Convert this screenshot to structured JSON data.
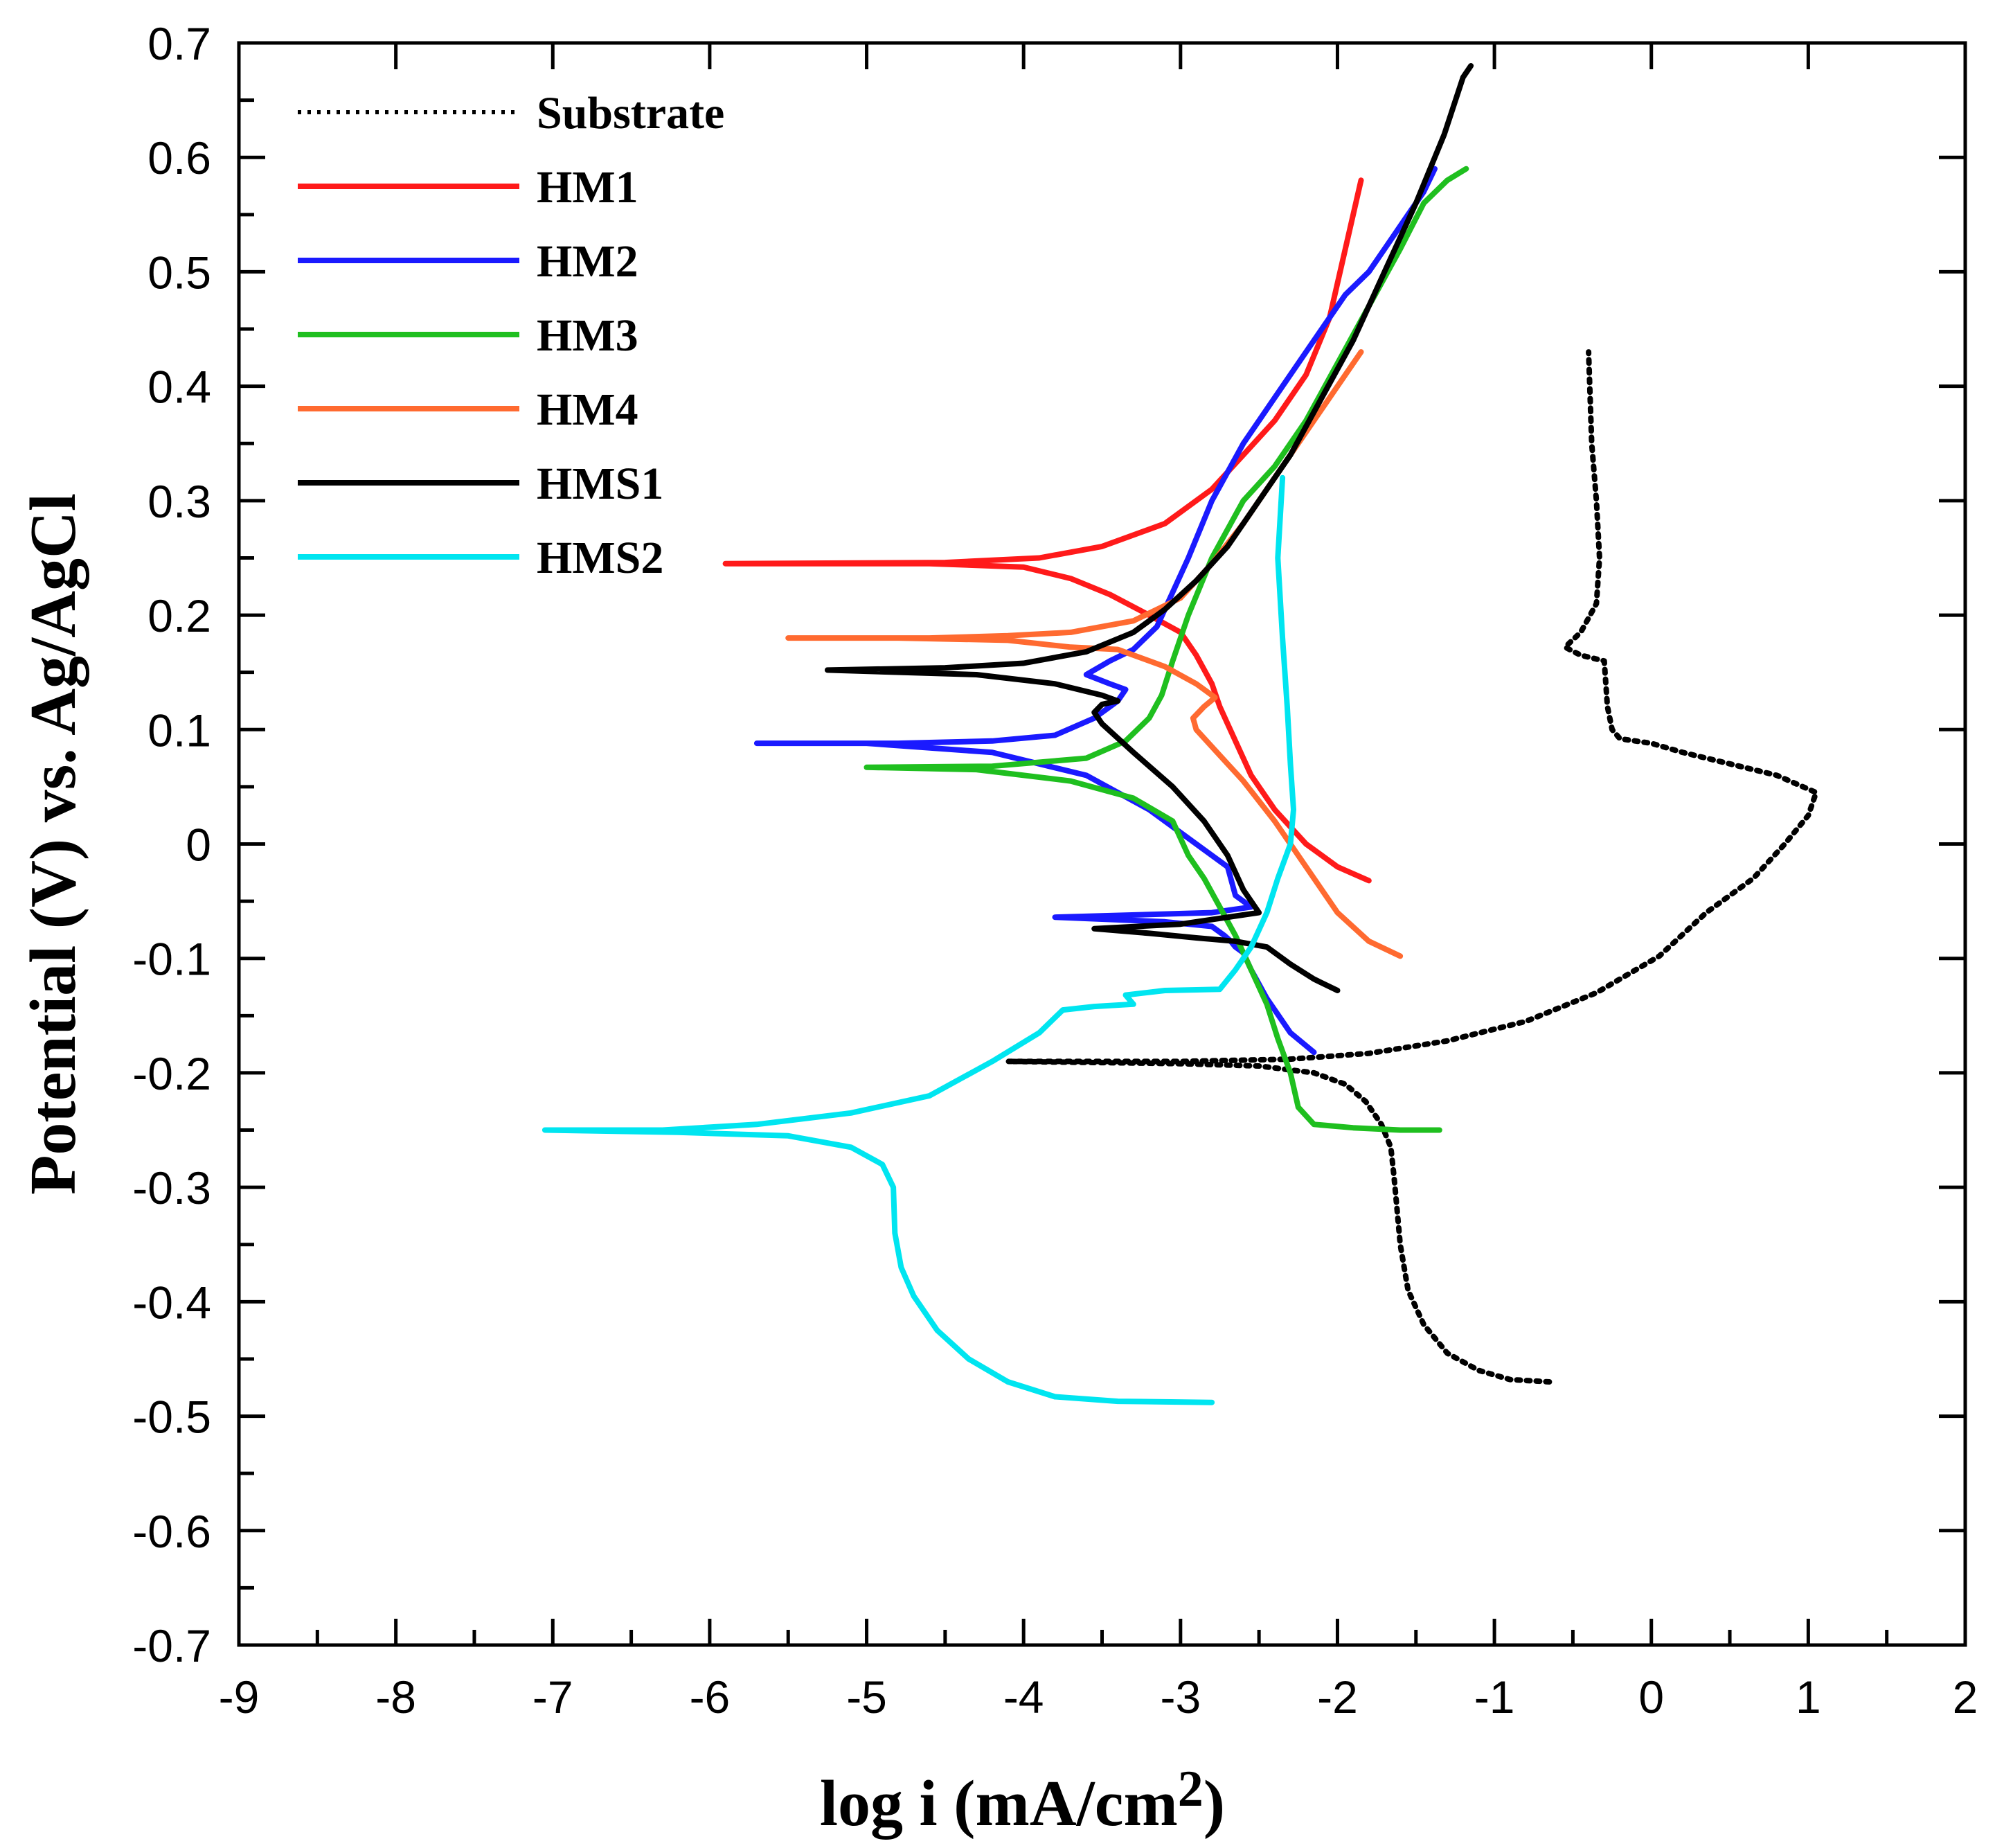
{
  "chart_data": {
    "type": "line",
    "title": "",
    "xlabel_main": "log i (mA/cm",
    "xlabel_sup": "2",
    "xlabel_tail": ")",
    "ylabel": "Potential (V) vs. Ag/AgCl",
    "xlim": [
      -9,
      2
    ],
    "ylim": [
      -0.7,
      0.7
    ],
    "xticks": [
      "-9",
      "-8",
      "-7",
      "-6",
      "-5",
      "-4",
      "-3",
      "-2",
      "-1",
      "0",
      "1",
      "2"
    ],
    "yticks": [
      "0.7",
      "0.6",
      "0.5",
      "0.4",
      "0.3",
      "0.2",
      "0.1",
      "0",
      "-0.1",
      "-0.2",
      "-0.3",
      "-0.4",
      "-0.5",
      "-0.6",
      "-0.7"
    ],
    "legend_position": "top-left",
    "series": [
      {
        "name": "Substrate",
        "color": "#000000",
        "style": "dotted",
        "points": [
          [
            -0.65,
            -0.47
          ],
          [
            -0.9,
            -0.468
          ],
          [
            -1.1,
            -0.46
          ],
          [
            -1.3,
            -0.445
          ],
          [
            -1.45,
            -0.42
          ],
          [
            -1.55,
            -0.39
          ],
          [
            -1.6,
            -0.35
          ],
          [
            -1.62,
            -0.32
          ],
          [
            -1.64,
            -0.29
          ],
          [
            -1.66,
            -0.265
          ],
          [
            -1.72,
            -0.245
          ],
          [
            -1.82,
            -0.225
          ],
          [
            -1.95,
            -0.21
          ],
          [
            -2.15,
            -0.2
          ],
          [
            -2.5,
            -0.194
          ],
          [
            -3.0,
            -0.192
          ],
          [
            -3.5,
            -0.191
          ],
          [
            -4.1,
            -0.19
          ],
          [
            -3.0,
            -0.19
          ],
          [
            -2.3,
            -0.188
          ],
          [
            -1.8,
            -0.183
          ],
          [
            -1.3,
            -0.172
          ],
          [
            -0.8,
            -0.155
          ],
          [
            -0.35,
            -0.13
          ],
          [
            0.05,
            -0.098
          ],
          [
            0.35,
            -0.06
          ],
          [
            0.65,
            -0.03
          ],
          [
            0.85,
            0.0
          ],
          [
            1.0,
            0.025
          ],
          [
            1.05,
            0.045
          ],
          [
            0.8,
            0.06
          ],
          [
            0.5,
            0.07
          ],
          [
            0.2,
            0.08
          ],
          [
            0.0,
            0.088
          ],
          [
            -0.2,
            0.092
          ],
          [
            -0.25,
            0.1
          ],
          [
            -0.28,
            0.12
          ],
          [
            -0.3,
            0.16
          ],
          [
            -0.45,
            0.165
          ],
          [
            -0.55,
            0.172
          ],
          [
            -0.45,
            0.185
          ],
          [
            -0.35,
            0.21
          ],
          [
            -0.33,
            0.25
          ],
          [
            -0.35,
            0.3
          ],
          [
            -0.38,
            0.35
          ],
          [
            -0.4,
            0.43
          ]
        ]
      },
      {
        "name": "HM1",
        "color": "#ff1a1a",
        "style": "solid",
        "points": [
          [
            -1.8,
            -0.032
          ],
          [
            -2.0,
            -0.02
          ],
          [
            -2.2,
            0.0
          ],
          [
            -2.4,
            0.03
          ],
          [
            -2.55,
            0.06
          ],
          [
            -2.65,
            0.09
          ],
          [
            -2.75,
            0.12
          ],
          [
            -2.8,
            0.14
          ],
          [
            -2.9,
            0.165
          ],
          [
            -3.0,
            0.185
          ],
          [
            -3.2,
            0.2
          ],
          [
            -3.45,
            0.218
          ],
          [
            -3.7,
            0.232
          ],
          [
            -4.0,
            0.242
          ],
          [
            -4.6,
            0.245
          ],
          [
            -5.9,
            0.245
          ],
          [
            -4.5,
            0.246
          ],
          [
            -3.9,
            0.25
          ],
          [
            -3.5,
            0.26
          ],
          [
            -3.1,
            0.28
          ],
          [
            -2.8,
            0.31
          ],
          [
            -2.6,
            0.34
          ],
          [
            -2.4,
            0.37
          ],
          [
            -2.2,
            0.41
          ],
          [
            -2.05,
            0.46
          ],
          [
            -1.95,
            0.52
          ],
          [
            -1.85,
            0.58
          ]
        ]
      },
      {
        "name": "HM2",
        "color": "#1a1aff",
        "style": "solid",
        "points": [
          [
            -2.15,
            -0.182
          ],
          [
            -2.3,
            -0.165
          ],
          [
            -2.45,
            -0.135
          ],
          [
            -2.55,
            -0.11
          ],
          [
            -2.6,
            -0.095
          ],
          [
            -2.65,
            -0.09
          ],
          [
            -2.68,
            -0.085
          ],
          [
            -2.72,
            -0.08
          ],
          [
            -2.8,
            -0.072
          ],
          [
            -3.1,
            -0.068
          ],
          [
            -3.8,
            -0.064
          ],
          [
            -2.8,
            -0.06
          ],
          [
            -2.55,
            -0.055
          ],
          [
            -2.65,
            -0.045
          ],
          [
            -2.7,
            -0.02
          ],
          [
            -2.9,
            0.0
          ],
          [
            -3.2,
            0.03
          ],
          [
            -3.6,
            0.06
          ],
          [
            -4.2,
            0.08
          ],
          [
            -5.0,
            0.088
          ],
          [
            -5.7,
            0.088
          ],
          [
            -4.8,
            0.088
          ],
          [
            -4.2,
            0.09
          ],
          [
            -3.8,
            0.095
          ],
          [
            -3.55,
            0.11
          ],
          [
            -3.4,
            0.125
          ],
          [
            -3.35,
            0.135
          ],
          [
            -3.45,
            0.14
          ],
          [
            -3.6,
            0.148
          ],
          [
            -3.45,
            0.16
          ],
          [
            -3.3,
            0.17
          ],
          [
            -3.15,
            0.19
          ],
          [
            -3.05,
            0.22
          ],
          [
            -2.95,
            0.25
          ],
          [
            -2.8,
            0.3
          ],
          [
            -2.6,
            0.35
          ],
          [
            -2.35,
            0.4
          ],
          [
            -2.1,
            0.45
          ],
          [
            -1.95,
            0.48
          ],
          [
            -1.8,
            0.5
          ],
          [
            -1.65,
            0.53
          ],
          [
            -1.55,
            0.55
          ],
          [
            -1.45,
            0.57
          ],
          [
            -1.38,
            0.59
          ]
        ]
      },
      {
        "name": "HM3",
        "color": "#1fbf1f",
        "style": "solid",
        "points": [
          [
            -1.35,
            -0.25
          ],
          [
            -1.6,
            -0.25
          ],
          [
            -1.9,
            -0.248
          ],
          [
            -2.15,
            -0.245
          ],
          [
            -2.25,
            -0.23
          ],
          [
            -2.3,
            -0.2
          ],
          [
            -2.38,
            -0.17
          ],
          [
            -2.45,
            -0.14
          ],
          [
            -2.55,
            -0.11
          ],
          [
            -2.65,
            -0.08
          ],
          [
            -2.75,
            -0.055
          ],
          [
            -2.85,
            -0.03
          ],
          [
            -2.95,
            -0.01
          ],
          [
            -3.05,
            0.02
          ],
          [
            -3.3,
            0.04
          ],
          [
            -3.7,
            0.055
          ],
          [
            -4.3,
            0.065
          ],
          [
            -5.0,
            0.067
          ],
          [
            -4.2,
            0.068
          ],
          [
            -3.6,
            0.075
          ],
          [
            -3.35,
            0.09
          ],
          [
            -3.2,
            0.11
          ],
          [
            -3.12,
            0.13
          ],
          [
            -3.05,
            0.16
          ],
          [
            -2.95,
            0.2
          ],
          [
            -2.8,
            0.25
          ],
          [
            -2.6,
            0.3
          ],
          [
            -2.4,
            0.33
          ],
          [
            -2.2,
            0.37
          ],
          [
            -2.0,
            0.42
          ],
          [
            -1.8,
            0.47
          ],
          [
            -1.6,
            0.52
          ],
          [
            -1.45,
            0.56
          ],
          [
            -1.3,
            0.58
          ],
          [
            -1.18,
            0.59
          ]
        ]
      },
      {
        "name": "HM4",
        "color": "#ff6a30",
        "style": "solid",
        "points": [
          [
            -1.6,
            -0.098
          ],
          [
            -1.8,
            -0.085
          ],
          [
            -2.0,
            -0.06
          ],
          [
            -2.2,
            -0.02
          ],
          [
            -2.4,
            0.02
          ],
          [
            -2.6,
            0.055
          ],
          [
            -2.8,
            0.085
          ],
          [
            -2.9,
            0.1
          ],
          [
            -2.92,
            0.11
          ],
          [
            -2.85,
            0.12
          ],
          [
            -2.78,
            0.128
          ],
          [
            -2.9,
            0.14
          ],
          [
            -3.1,
            0.155
          ],
          [
            -3.4,
            0.17
          ],
          [
            -3.7,
            0.172
          ],
          [
            -4.1,
            0.178
          ],
          [
            -4.8,
            0.18
          ],
          [
            -5.5,
            0.18
          ],
          [
            -4.6,
            0.18
          ],
          [
            -4.1,
            0.182
          ],
          [
            -3.7,
            0.185
          ],
          [
            -3.3,
            0.195
          ],
          [
            -3.0,
            0.215
          ],
          [
            -2.8,
            0.245
          ],
          [
            -2.6,
            0.28
          ],
          [
            -2.4,
            0.32
          ],
          [
            -2.2,
            0.36
          ],
          [
            -2.0,
            0.4
          ],
          [
            -1.85,
            0.43
          ]
        ]
      },
      {
        "name": "HMS1",
        "color": "#000000",
        "style": "solid",
        "points": [
          [
            -2.0,
            -0.128
          ],
          [
            -2.15,
            -0.118
          ],
          [
            -2.3,
            -0.105
          ],
          [
            -2.45,
            -0.09
          ],
          [
            -2.65,
            -0.085
          ],
          [
            -2.9,
            -0.082
          ],
          [
            -3.2,
            -0.078
          ],
          [
            -3.55,
            -0.074
          ],
          [
            -3.0,
            -0.07
          ],
          [
            -2.5,
            -0.06
          ],
          [
            -2.6,
            -0.04
          ],
          [
            -2.7,
            -0.01
          ],
          [
            -2.85,
            0.02
          ],
          [
            -3.05,
            0.05
          ],
          [
            -3.3,
            0.08
          ],
          [
            -3.5,
            0.105
          ],
          [
            -3.55,
            0.115
          ],
          [
            -3.5,
            0.122
          ],
          [
            -3.4,
            0.125
          ],
          [
            -3.5,
            0.13
          ],
          [
            -3.8,
            0.14
          ],
          [
            -4.3,
            0.148
          ],
          [
            -5.25,
            0.152
          ],
          [
            -4.5,
            0.154
          ],
          [
            -4.0,
            0.158
          ],
          [
            -3.6,
            0.168
          ],
          [
            -3.3,
            0.185
          ],
          [
            -3.1,
            0.205
          ],
          [
            -2.9,
            0.23
          ],
          [
            -2.7,
            0.26
          ],
          [
            -2.5,
            0.3
          ],
          [
            -2.3,
            0.34
          ],
          [
            -2.1,
            0.39
          ],
          [
            -1.9,
            0.44
          ],
          [
            -1.7,
            0.5
          ],
          [
            -1.5,
            0.56
          ],
          [
            -1.32,
            0.62
          ],
          [
            -1.2,
            0.67
          ],
          [
            -1.15,
            0.68
          ]
        ]
      },
      {
        "name": "HMS2",
        "color": "#00e5f0",
        "style": "solid",
        "points": [
          [
            -2.8,
            -0.488
          ],
          [
            -3.4,
            -0.487
          ],
          [
            -3.8,
            -0.483
          ],
          [
            -4.1,
            -0.47
          ],
          [
            -4.35,
            -0.45
          ],
          [
            -4.55,
            -0.425
          ],
          [
            -4.7,
            -0.395
          ],
          [
            -4.78,
            -0.37
          ],
          [
            -4.82,
            -0.34
          ],
          [
            -4.83,
            -0.3
          ],
          [
            -4.9,
            -0.28
          ],
          [
            -5.1,
            -0.265
          ],
          [
            -5.5,
            -0.255
          ],
          [
            -6.2,
            -0.252
          ],
          [
            -7.05,
            -0.25
          ],
          [
            -6.3,
            -0.25
          ],
          [
            -5.7,
            -0.245
          ],
          [
            -5.1,
            -0.235
          ],
          [
            -4.6,
            -0.22
          ],
          [
            -4.2,
            -0.19
          ],
          [
            -3.9,
            -0.165
          ],
          [
            -3.75,
            -0.145
          ],
          [
            -3.55,
            -0.142
          ],
          [
            -3.3,
            -0.14
          ],
          [
            -3.35,
            -0.132
          ],
          [
            -3.1,
            -0.128
          ],
          [
            -2.75,
            -0.127
          ],
          [
            -2.65,
            -0.11
          ],
          [
            -2.55,
            -0.09
          ],
          [
            -2.45,
            -0.06
          ],
          [
            -2.38,
            -0.03
          ],
          [
            -2.3,
            0.0
          ],
          [
            -2.28,
            0.03
          ],
          [
            -2.3,
            0.07
          ],
          [
            -2.32,
            0.12
          ],
          [
            -2.35,
            0.18
          ],
          [
            -2.38,
            0.25
          ],
          [
            -2.35,
            0.32
          ]
        ]
      }
    ]
  }
}
